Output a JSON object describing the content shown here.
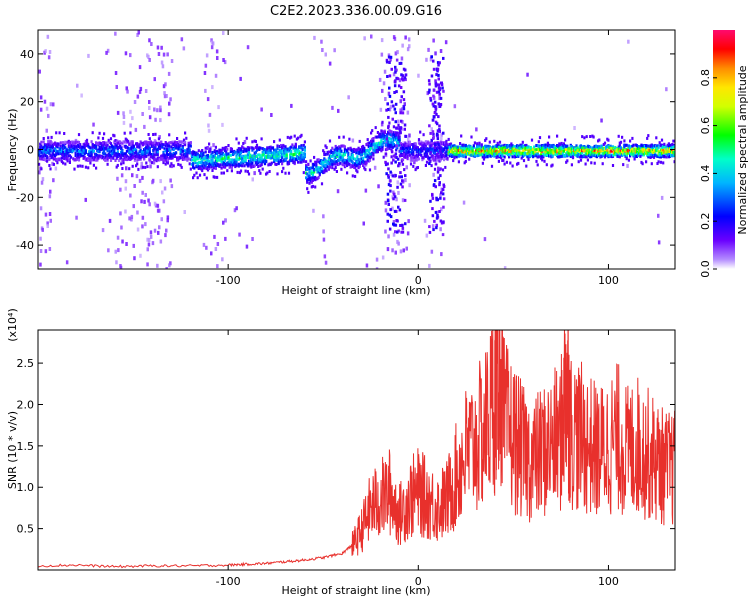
{
  "title": "C2E2.2023.336.00.09.G16",
  "chart_data": [
    {
      "type": "heatmap",
      "xlabel": "Height of straight line (km)",
      "ylabel": "Frequency (Hz)",
      "xlim": [
        -200,
        135
      ],
      "ylim": [
        -50,
        50
      ],
      "xticks": [
        -100,
        0,
        100
      ],
      "xtick_labels": [
        "-100",
        "0",
        "100"
      ],
      "yticks": [
        -40,
        -20,
        0,
        20,
        40
      ],
      "ytick_labels": [
        "-40",
        "-20",
        "0",
        "20",
        "40"
      ],
      "colorbar": {
        "label": "Normalized spectral amplitude",
        "range": [
          0,
          1
        ],
        "ticks": [
          0.0,
          0.2,
          0.4,
          0.6,
          0.8
        ],
        "tick_labels": [
          "0.0",
          "0.2",
          "0.4",
          "0.6",
          "0.8"
        ],
        "colormap": "rainbow (white → violet → blue → cyan → green → yellow → orange → red → magenta)"
      },
      "features": [
        {
          "x_range": [
            -200,
            -120
          ],
          "freq": 0,
          "amplitude": 0.35
        },
        {
          "x_range": [
            -120,
            -60
          ],
          "freq": -3,
          "amplitude": 0.55
        },
        {
          "x_range": [
            -60,
            -10
          ],
          "freq": 2,
          "amplitude": 0.5
        },
        {
          "x_range": [
            15,
            135
          ],
          "freq": 0,
          "amplitude": 0.9
        }
      ]
    },
    {
      "type": "line",
      "xlabel": "Height of straight line (km)",
      "ylabel": "SNR (10 * v/v)",
      "y_multiplier": "(x10⁴)",
      "xlim": [
        -200,
        135
      ],
      "ylim": [
        0,
        2.9
      ],
      "xticks": [
        -100,
        0,
        100
      ],
      "xtick_labels": [
        "-100",
        "0",
        "100"
      ],
      "yticks": [
        0.5,
        1.0,
        1.5,
        2.0,
        2.5
      ],
      "ytick_labels": [
        "0.5",
        "1.0",
        "1.5",
        "2.0",
        "2.5"
      ],
      "color": "#e8302c",
      "series": [
        {
          "x": [
            -200,
            -180,
            -160,
            -140,
            -120,
            -100,
            -90,
            -80,
            -70,
            -60,
            -50,
            -40,
            -35,
            -30,
            -25,
            -20,
            -15,
            -10,
            -5,
            0,
            5,
            10,
            15,
            20,
            25,
            30,
            35,
            40,
            42,
            45,
            50,
            55,
            60,
            65,
            70,
            75,
            78,
            80,
            85,
            90,
            95,
            100,
            105,
            110,
            115,
            120,
            125,
            130,
            135
          ],
          "values": [
            0.05,
            0.06,
            0.04,
            0.05,
            0.05,
            0.06,
            0.07,
            0.08,
            0.1,
            0.12,
            0.15,
            0.2,
            0.3,
            0.5,
            0.8,
            0.9,
            1.0,
            0.7,
            0.9,
            1.0,
            0.9,
            0.8,
            0.9,
            1.2,
            1.5,
            1.6,
            1.8,
            2.2,
            2.9,
            1.9,
            1.7,
            1.5,
            1.4,
            1.5,
            1.6,
            1.7,
            2.5,
            1.8,
            1.7,
            1.6,
            1.5,
            1.6,
            1.7,
            1.5,
            1.6,
            1.5,
            1.4,
            1.3,
            1.3
          ]
        }
      ]
    }
  ]
}
